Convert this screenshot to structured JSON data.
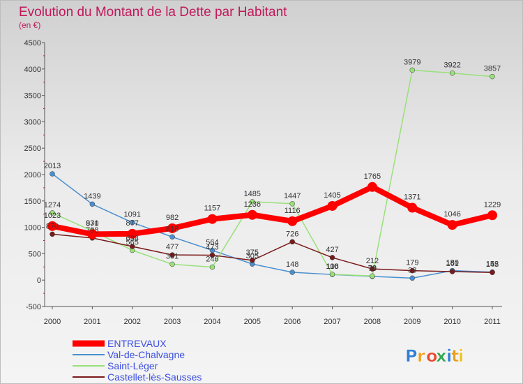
{
  "chart_data": {
    "type": "line",
    "title": "Evolution du Montant de la Dette par Habitant",
    "subtitle": "(en €)",
    "xlabel": "",
    "ylabel": "",
    "x": [
      "2000",
      "2001",
      "2002",
      "2003",
      "2004",
      "2005",
      "2006",
      "2007",
      "2008",
      "2009",
      "2010",
      "2011"
    ],
    "ylim": [
      -500,
      4500
    ],
    "yticks": [
      "-500",
      "0",
      "500",
      "1000",
      "1500",
      "2000",
      "2500",
      "3000",
      "3500",
      "4000",
      "4500"
    ],
    "grid": false,
    "legend_position": "bottom-left",
    "series": [
      {
        "name": "ENTREVAUX",
        "color": "#ff0000",
        "values": [
          1023,
          870,
          877,
          982,
          1157,
          1236,
          1116,
          1405,
          1765,
          1371,
          1046,
          1229
        ],
        "labels": [
          "1023",
          "870",
          "877",
          "982",
          "1157",
          "1236",
          "1116",
          "1405",
          "1765",
          "1371",
          "1046",
          "1229"
        ]
      },
      {
        "name": "Val-de-Chalvagne",
        "color": "#4a8fd0",
        "values": [
          2013,
          1439,
          1091,
          818,
          564,
          305,
          148,
          106,
          70,
          38,
          180,
          152
        ],
        "labels": [
          "2013",
          "1439",
          "1091",
          "818",
          "564",
          "305",
          "148",
          "106",
          "70",
          "38",
          "180",
          "152"
        ]
      },
      {
        "name": "Saint-Léger",
        "color": "#99e07a",
        "values": [
          1274,
          931,
          565,
          301,
          246,
          1485,
          1447,
          110,
          78,
          3979,
          3922,
          3857
        ],
        "labels": [
          "1274",
          "931",
          "565",
          "301",
          "246",
          "1485",
          "1447",
          "110",
          "78",
          "3979",
          "3922",
          "3857"
        ]
      },
      {
        "name": "Castellet-lès-Sausses",
        "color": "#7a1a1a",
        "values": [
          870,
          798,
          638,
          477,
          473,
          375,
          726,
          427,
          212,
          179,
          161,
          145
        ],
        "labels": [
          "870",
          "798",
          "638",
          "477",
          "473",
          "375",
          "726",
          "427",
          "212",
          "179",
          "161",
          "145"
        ]
      }
    ]
  },
  "logo": {
    "text": "Proxiti",
    "letter_colors": [
      "#2f7fd6",
      "#f0a020",
      "#e84a2f",
      "#2fa84f",
      "#2f7fd6",
      "#e8a020",
      "#f0c020"
    ]
  }
}
